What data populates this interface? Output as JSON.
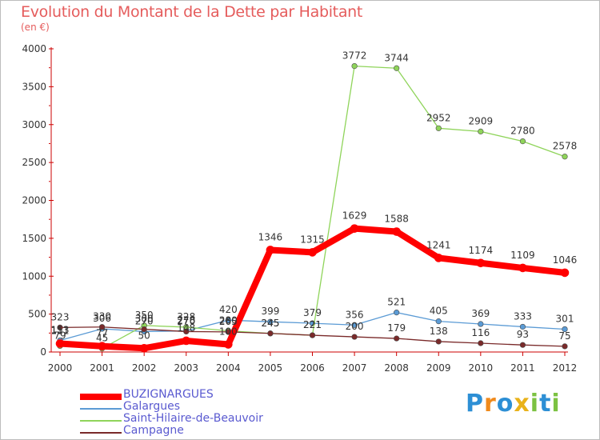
{
  "title": "Evolution du Montant de la Dette par Habitant",
  "subtitle": "(en €)",
  "logo": {
    "text": "Proxiti",
    "letters": [
      "P",
      "r",
      "o",
      "x",
      "i",
      "t",
      "i"
    ],
    "colors": [
      "#2d8fd5",
      "#f08a1c",
      "#2d8fd5",
      "#e9b21a",
      "#7cc242",
      "#2d8fd5",
      "#7cc242"
    ]
  },
  "chart_data": {
    "type": "line",
    "title": "Evolution du Montant de la Dette par Habitant",
    "subtitle": "(en €)",
    "xlabel": "",
    "ylabel": "",
    "ylim": [
      0,
      4000
    ],
    "yticks": [
      0,
      500,
      1000,
      1500,
      2000,
      2500,
      3000,
      3500,
      4000
    ],
    "categories": [
      "2000",
      "2001",
      "2002",
      "2003",
      "2004",
      "2005",
      "2006",
      "2007",
      "2008",
      "2009",
      "2010",
      "2011",
      "2012"
    ],
    "grid": false,
    "legend_position": "bottom-left",
    "series": [
      {
        "name": "Galargues",
        "color": "#5b9bd5",
        "width": 1.3,
        "values": [
          153,
          306,
          270,
          278,
          420,
          399,
          379,
          356,
          521,
          405,
          369,
          333,
          301
        ],
        "labels": [
          "153",
          "306",
          "270",
          "278",
          "420",
          "399",
          "379",
          "356",
          "521",
          "405",
          "369",
          "333",
          "301"
        ]
      },
      {
        "name": "Saint-Hilaire-de-Beauvoir",
        "color": "#8fd45a",
        "width": 1.3,
        "values": [
          79,
          45,
          350,
          328,
          280,
          245,
          221,
          3772,
          3744,
          2952,
          2909,
          2780,
          2578
        ],
        "labels": [
          "79",
          "45",
          "350",
          "328",
          "280",
          "245",
          "221",
          "3772",
          "3744",
          "2952",
          "2909",
          "2780",
          "2578"
        ]
      },
      {
        "name": "Campagne",
        "color": "#7a2a2a",
        "width": 1.3,
        "values": [
          323,
          330,
          300,
          270,
          265,
          245,
          221,
          200,
          179,
          138,
          116,
          93,
          75
        ],
        "labels": [
          "323",
          "330",
          "300",
          "270",
          "265",
          "245",
          "221",
          "200",
          "179",
          "138",
          "116",
          "93",
          "75"
        ]
      },
      {
        "name": "BUZIGNARGUES",
        "color": "#ff0000",
        "width": 8,
        "values": [
          111,
          77,
          50,
          148,
          100,
          1346,
          1315,
          1629,
          1588,
          1241,
          1174,
          1109,
          1046
        ],
        "labels": [
          "111",
          "77",
          "50",
          "148",
          "100",
          "1346",
          "1315",
          "1629",
          "1588",
          "1241",
          "1174",
          "1109",
          "1046"
        ]
      }
    ],
    "legend": [
      "BUZIGNARGUES",
      "Galargues",
      "Saint-Hilaire-de-Beauvoir",
      "Campagne"
    ]
  }
}
